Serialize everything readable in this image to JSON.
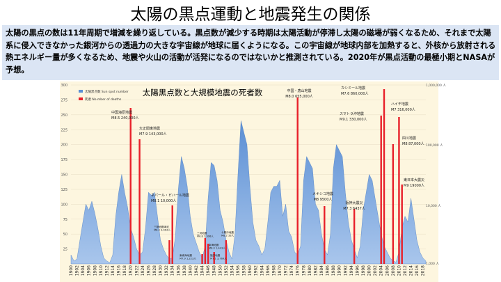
{
  "slide": {
    "title": "太陽の黒点運動と地震発生の関係",
    "description": "太陽の黒点の数は11年周期で増減を繰り返している。黒点数が減少する時期は太陽活動が停滞し太陽の磁場が弱くなるため、それまで太陽系に侵入できなかった銀河からの透過力の大きな宇宙線が地球に届くようになる。この宇宙線が地球内部を加熱すると、外核から放射される熱エネルギー量が多くなるため、地震や火山の活動が活発になるのではないかと推測されている。2020年が黒点活動の最極小期とNASAが予想。"
  },
  "colors": {
    "area": "#5b8fd4",
    "bar": "#e8202a",
    "background": "#fdf6df",
    "desc_box": "#dbe5f4"
  },
  "chart_data": {
    "type": "area",
    "title": "太陽黒点数と大規模地震の死者数",
    "legend": {
      "placement": "top-left",
      "items": [
        {
          "label": "太陽黒点数 Sun spot number",
          "color": "#5b8fd4"
        },
        {
          "label": "死者 No.mber of deaths",
          "color": "#e8202a"
        }
      ]
    },
    "y_left_ticks": [
      "300",
      "275",
      "250",
      "225",
      "200",
      "175",
      "150",
      "125",
      "100",
      "75",
      "50",
      "25"
    ],
    "y_right_ticks": [
      "1,000,000 人",
      "100,000 人",
      "10,000 人",
      "1,000 人"
    ],
    "x_ticks": [
      "1900",
      "1902",
      "1904",
      "1906",
      "1908",
      "1910",
      "1912",
      "1914",
      "1916",
      "1918",
      "1920",
      "1922",
      "1924",
      "1926",
      "1928",
      "1930",
      "1932",
      "1934",
      "1936",
      "1938",
      "1940",
      "1942",
      "1944",
      "1946",
      "1948",
      "1950",
      "1952",
      "1954",
      "1956",
      "1958",
      "1960",
      "1962",
      "1964",
      "1966",
      "1968",
      "1970",
      "1972",
      "1974",
      "1976",
      "1978",
      "1980",
      "1982",
      "1984",
      "1986",
      "1988",
      "1990",
      "1992",
      "1994",
      "1996",
      "1998",
      "2000",
      "2002",
      "2004",
      "2006",
      "2008",
      "2010",
      "2012",
      "2014",
      "2016",
      "2018"
    ],
    "xlim": [
      1900,
      2019
    ],
    "ylim": [
      0,
      300
    ],
    "sunspots": {
      "x": [
        1900,
        1901,
        1902,
        1903,
        1904,
        1905,
        1906,
        1907,
        1908,
        1909,
        1910,
        1911,
        1912,
        1913,
        1914,
        1915,
        1916,
        1917,
        1918,
        1919,
        1920,
        1921,
        1922,
        1923,
        1924,
        1925,
        1926,
        1927,
        1928,
        1929,
        1930,
        1931,
        1932,
        1933,
        1934,
        1935,
        1936,
        1937,
        1938,
        1939,
        1940,
        1941,
        1942,
        1943,
        1944,
        1945,
        1946,
        1947,
        1948,
        1949,
        1950,
        1951,
        1952,
        1953,
        1954,
        1955,
        1956,
        1957,
        1958,
        1959,
        1960,
        1961,
        1962,
        1963,
        1964,
        1965,
        1966,
        1967,
        1968,
        1969,
        1970,
        1971,
        1972,
        1973,
        1974,
        1975,
        1976,
        1977,
        1978,
        1979,
        1980,
        1981,
        1982,
        1983,
        1984,
        1985,
        1986,
        1987,
        1988,
        1989,
        1990,
        1991,
        1992,
        1993,
        1994,
        1995,
        1996,
        1997,
        1998,
        1999,
        2000,
        2001,
        2002,
        2003,
        2004,
        2005,
        2006,
        2007,
        2008,
        2009,
        2010,
        2011,
        2012,
        2013,
        2014,
        2015,
        2016,
        2017,
        2018,
        2019
      ],
      "y": [
        15,
        5,
        8,
        40,
        70,
        100,
        90,
        105,
        85,
        60,
        30,
        10,
        5,
        2,
        15,
        80,
        120,
        150,
        120,
        95,
        60,
        45,
        25,
        15,
        20,
        60,
        120,
        115,
        120,
        80,
        40,
        25,
        15,
        8,
        10,
        45,
        125,
        180,
        160,
        130,
        80,
        50,
        35,
        20,
        10,
        30,
        110,
        170,
        165,
        140,
        90,
        70,
        40,
        20,
        8,
        50,
        150,
        240,
        220,
        200,
        130,
        70,
        40,
        30,
        15,
        25,
        70,
        120,
        130,
        130,
        140,
        80,
        100,
        55,
        45,
        20,
        15,
        30,
        140,
        180,
        170,
        160,
        100,
        90,
        50,
        25,
        15,
        50,
        160,
        200,
        190,
        180,
        120,
        70,
        40,
        25,
        10,
        30,
        90,
        120,
        150,
        140,
        110,
        80,
        50,
        30,
        20,
        10,
        5,
        3,
        20,
        60,
        80,
        70,
        110,
        75,
        40,
        20,
        10,
        5
      ]
    },
    "earthquakes": [
      {
        "year": 1920,
        "name": "中国海原地震",
        "detail": "M8.5 240,000人"
      },
      {
        "year": 1923,
        "name": "大正関東地震",
        "detail": "M7.9 143,000人"
      },
      {
        "year": 1934,
        "name": "ネパール・ビハール地震",
        "detail": "M8.1 10,000人"
      },
      {
        "year": 1933,
        "name": "三陸地震津波",
        "detail": "M8.4 3,064人"
      },
      {
        "year": 1944,
        "name": "東南海地震",
        "detail": "M7.9 1,223人"
      },
      {
        "year": 1945,
        "name": "三河地震",
        "detail": "M6.8 2,306人"
      },
      {
        "year": 1946,
        "name": "南海地震",
        "detail": "M8.0 1,443人"
      },
      {
        "year": 1948,
        "name": "福井地震",
        "detail": "M7.1 3,769人"
      },
      {
        "year": 1952,
        "name": "十勝沖地震",
        "detail": "M8.2 33人"
      },
      {
        "year": 1976,
        "name": "中国・唐山地震",
        "detail": "M8.0 655,000人"
      },
      {
        "year": 1985,
        "name": "メキシコ地震",
        "detail": "M8 9500人"
      },
      {
        "year": 1995,
        "name": "阪神大震災",
        "detail": "M7.3 6437人"
      },
      {
        "year": 2004,
        "name": "スマトラ沖地震",
        "detail": "M9.1 330,000人"
      },
      {
        "year": 2005,
        "name": "カシミール地震",
        "detail": "M7.6 860,000人"
      },
      {
        "year": 2008,
        "name": "四川地震",
        "detail": "M8 87,000人"
      },
      {
        "year": 2010,
        "name": "ハイチ地震",
        "detail": "M7 316,000人"
      },
      {
        "year": 2011,
        "name": "東日本大震災",
        "detail": "M9 19000人"
      }
    ]
  }
}
